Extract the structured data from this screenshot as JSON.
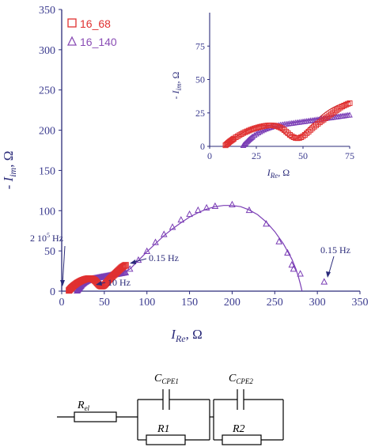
{
  "chart_data": [
    {
      "type": "scatter",
      "xlabel_main": "I",
      "xlabel_sub": "Re",
      "xlabel_unit": ", Ω",
      "ylabel_prefix": "- I",
      "ylabel_sub": "im",
      "ylabel_unit": ", Ω",
      "xlim": [
        0,
        350
      ],
      "ylim": [
        0,
        350
      ],
      "xticks": [
        0,
        50,
        100,
        150,
        200,
        250,
        300,
        350
      ],
      "yticks": [
        0,
        50,
        100,
        150,
        200,
        250,
        300,
        350
      ],
      "legend": [
        {
          "label": "16_68",
          "marker": "square",
          "color": "#e03030"
        },
        {
          "label": "16_140",
          "marker": "triangle",
          "color": "#8a4db5"
        }
      ],
      "annotations": [
        {
          "text": "2 10",
          "sup": "5",
          "rest": " Hz"
        },
        {
          "text": "0.15 Hz"
        },
        {
          "text": "10 Hz"
        },
        {
          "text": "0.15 Hz"
        }
      ],
      "series": [
        {
          "name": "16_68",
          "color": "#e03030",
          "marker": "square",
          "x": [
            8.5,
            9,
            9.5,
            10,
            10.5,
            11,
            11.5,
            12,
            12.5,
            13,
            14,
            15,
            16,
            17,
            18,
            19,
            20,
            21,
            22,
            23,
            24,
            25,
            26,
            27,
            28,
            29,
            30,
            31,
            32,
            33,
            34,
            35,
            36,
            37,
            38,
            39,
            40,
            41,
            42,
            43,
            44,
            45,
            46,
            47,
            48,
            49,
            50,
            51,
            52,
            53,
            54,
            55,
            56,
            57,
            58,
            59,
            60,
            61,
            62,
            63,
            64,
            65,
            66,
            67,
            68,
            69,
            70,
            71,
            72,
            73,
            74,
            75
          ],
          "y": [
            0.8,
            1.4,
            2,
            2.6,
            3.2,
            3.8,
            4.3,
            4.8,
            5.3,
            5.8,
            6.8,
            7.6,
            8.4,
            9.2,
            10,
            10.6,
            11.2,
            11.8,
            12.4,
            12.9,
            13.4,
            13.8,
            14.2,
            14.6,
            14.9,
            15.2,
            15.4,
            15.6,
            15.7,
            15.7,
            15.6,
            15.4,
            15.1,
            14.6,
            14,
            13.2,
            12.2,
            11,
            9.8,
            8.6,
            7.6,
            6.8,
            6.3,
            6.1,
            6.3,
            6.8,
            7.6,
            8.6,
            9.8,
            11,
            12.3,
            13.5,
            14.7,
            15.8,
            16.9,
            18,
            19,
            20,
            21,
            22,
            23,
            24,
            25,
            26,
            27,
            28,
            29,
            29.8,
            30.5,
            31.2,
            31.8,
            32.3
          ]
        },
        {
          "name": "16_140",
          "color": "#7a3db5",
          "marker": "triangle",
          "x": [
            18,
            18.5,
            19,
            19.5,
            20,
            20.5,
            21,
            21.5,
            22,
            22.5,
            23,
            24,
            25,
            26,
            27,
            28,
            29,
            30,
            31,
            32,
            33,
            34,
            35,
            36,
            37,
            38,
            39,
            40,
            41,
            42,
            43,
            44,
            45,
            46,
            47,
            48,
            49,
            50,
            51,
            52,
            53,
            54,
            55,
            56,
            57,
            58,
            59,
            60,
            61,
            62,
            63,
            64,
            65,
            66,
            67,
            68,
            69,
            70,
            71,
            72,
            73,
            74,
            75,
            80,
            90,
            100,
            110,
            120,
            130,
            140,
            150,
            160,
            170,
            180,
            200,
            220,
            240,
            255,
            265,
            270,
            272,
            280,
            308
          ],
          "y": [
            0.8,
            1.5,
            2.2,
            2.9,
            3.6,
            4.3,
            5,
            5.6,
            6.2,
            6.8,
            7.4,
            8.4,
            9.4,
            10.3,
            11.1,
            11.8,
            12.5,
            13.1,
            13.6,
            14.1,
            14.5,
            14.9,
            15.3,
            15.6,
            15.9,
            16.2,
            16.4,
            16.6,
            16.8,
            17,
            17.2,
            17.4,
            17.6,
            17.8,
            18,
            18.2,
            18.4,
            18.6,
            18.8,
            19,
            19.2,
            19.4,
            19.6,
            19.8,
            20,
            20.2,
            20.4,
            20.6,
            20.8,
            21,
            21.2,
            21.4,
            21.6,
            21.8,
            22,
            22.2,
            22.4,
            22.6,
            22.8,
            23,
            23.2,
            23.4,
            23.6,
            28,
            39,
            50,
            61,
            71,
            80,
            89,
            96,
            101,
            104,
            106,
            108,
            101,
            84,
            62,
            48,
            33,
            28,
            22,
            12
          ]
        },
        {
          "name": "fit-16_68",
          "color": "#cc2222",
          "marker": "line",
          "x": [
            8,
            9,
            10,
            11,
            12,
            13,
            14,
            15,
            16,
            17,
            18,
            19,
            20,
            21,
            22,
            23,
            24,
            25,
            26,
            27,
            28,
            29,
            30,
            31,
            32,
            33,
            34,
            35,
            36,
            37,
            38,
            39,
            40,
            41,
            42,
            43,
            44,
            45,
            46,
            47,
            48,
            49,
            50,
            52,
            54,
            56,
            58,
            60,
            62,
            64,
            66,
            68,
            70,
            72,
            74,
            75
          ],
          "y": [
            0,
            1.3,
            2.6,
            3.8,
            5,
            6.1,
            7.1,
            8,
            8.9,
            9.7,
            10.5,
            11.2,
            11.9,
            12.5,
            13.1,
            13.6,
            14.1,
            14.5,
            14.9,
            15.2,
            15.4,
            15.6,
            15.7,
            15.7,
            15.6,
            15.4,
            15.1,
            14.6,
            14,
            13.2,
            12.2,
            11,
            9.7,
            8.4,
            7.3,
            6.5,
            6,
            5.8,
            5.8,
            6.2,
            7,
            8.1,
            9.4,
            12.3,
            15.2,
            18,
            20.7,
            23.1,
            25.3,
            27.2,
            28.9,
            30.3,
            31.5,
            32.4,
            33,
            33.2
          ]
        },
        {
          "name": "fit-16_140",
          "color": "#7a3db5",
          "marker": "line",
          "x": [
            17,
            18,
            20,
            22,
            24,
            26,
            28,
            30,
            32,
            34,
            36,
            38,
            40,
            45,
            50,
            55,
            60,
            65,
            70,
            75,
            80,
            90,
            100,
            110,
            120,
            130,
            140,
            150,
            160,
            170,
            180,
            190,
            200,
            210,
            220,
            230,
            240,
            250,
            260,
            270,
            275,
            278,
            280,
            281,
            282
          ],
          "y": [
            0,
            2.1,
            4.8,
            7,
            8.8,
            10.3,
            11.6,
            12.7,
            13.7,
            14.5,
            15.2,
            15.9,
            16.5,
            17.8,
            19,
            20.1,
            21.2,
            22.3,
            23.4,
            24.4,
            27.5,
            38,
            49,
            59,
            69,
            77.5,
            85,
            92,
            97.5,
            102,
            105,
            106.5,
            106.5,
            105,
            101,
            95,
            86,
            74,
            59,
            40,
            27,
            17,
            9,
            4.5,
            0
          ]
        }
      ],
      "inset": {
        "xlim": [
          0,
          75
        ],
        "ylim": [
          0,
          100
        ],
        "xticks": [
          0,
          25,
          50,
          75
        ],
        "yticks": [
          0,
          25,
          50,
          75
        ],
        "xlabel_main": "I",
        "xlabel_sub": "Re",
        "xlabel_unit": ", Ω",
        "ylabel_prefix": "- I",
        "ylabel_sub": "im",
        "ylabel_unit": ", Ω"
      }
    },
    {
      "type": "diagram",
      "labels": {
        "rel_main": "R",
        "rel_sub": "el",
        "cpe1_main": "C",
        "cpe1_sub": "CPE1",
        "cpe2_main": "C",
        "cpe2_sub": "CPE2",
        "r1": "R1",
        "r2": "R2"
      }
    }
  ],
  "colors": {
    "axis": "#2b2b7a",
    "red": "#e03030",
    "purple": "#7a3db5"
  }
}
